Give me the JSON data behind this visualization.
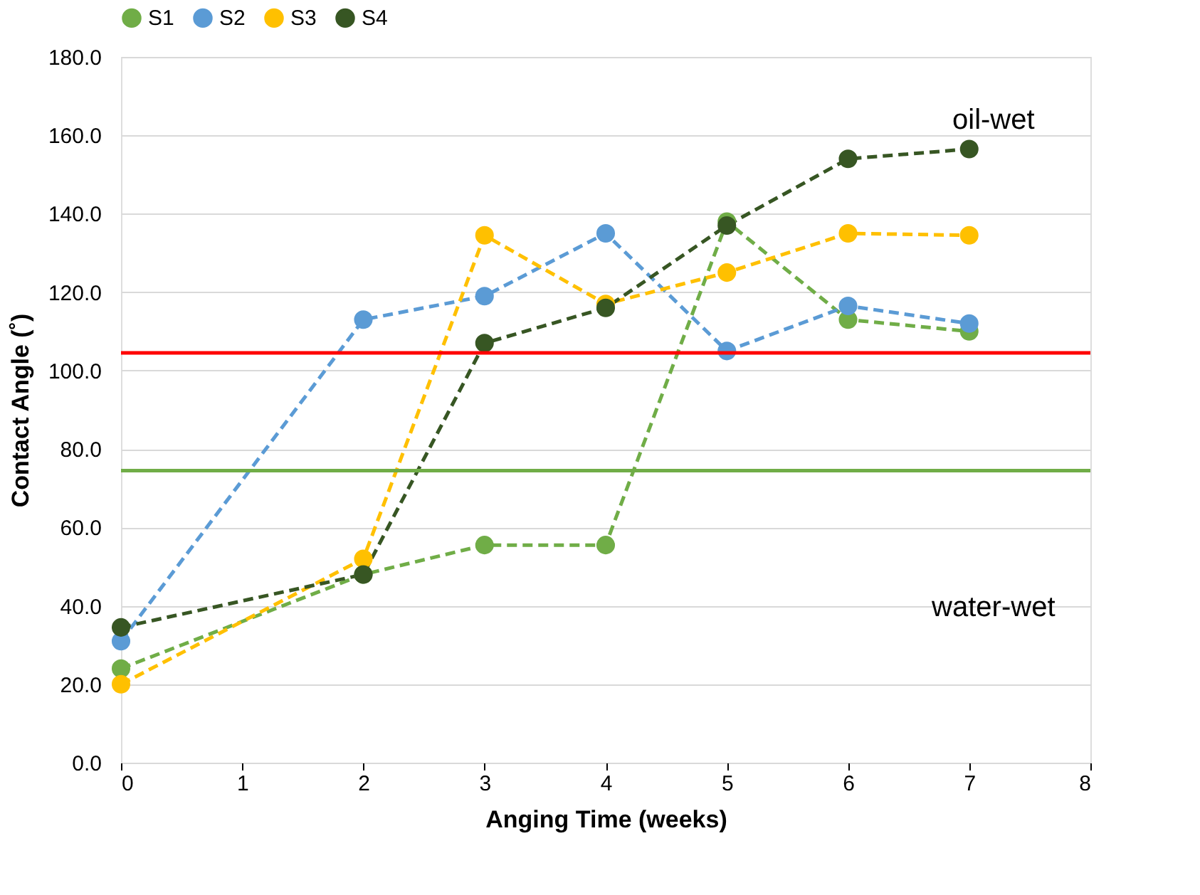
{
  "chart_data": {
    "type": "line",
    "xlabel": "Anging Time (weeks)",
    "ylabel": "Contact Angle (˚)",
    "x": [
      0,
      2,
      3,
      4,
      5,
      6,
      7
    ],
    "series": [
      {
        "name": "S1",
        "color": "#70ad47",
        "values": [
          24,
          48,
          55.5,
          55.5,
          138,
          113,
          110
        ]
      },
      {
        "name": "S2",
        "color": "#5b9bd5",
        "values": [
          31,
          113,
          119,
          135,
          105,
          116.5,
          112
        ]
      },
      {
        "name": "S3",
        "color": "#ffc000",
        "values": [
          20,
          52,
          134.5,
          117,
          125,
          135,
          134.5
        ]
      },
      {
        "name": "S4",
        "color": "#375623",
        "values": [
          34.5,
          48,
          107,
          116,
          137,
          154,
          156.5
        ]
      }
    ],
    "xlim": [
      0,
      8
    ],
    "xticks": [
      0,
      1,
      2,
      3,
      4,
      5,
      6,
      7,
      8
    ],
    "ylim": [
      0,
      180
    ],
    "yticks": [
      {
        "value": 0,
        "label": "0.0"
      },
      {
        "value": 20,
        "label": "20.0"
      },
      {
        "value": 40,
        "label": "40.0"
      },
      {
        "value": 60,
        "label": "60.0"
      },
      {
        "value": 80,
        "label": "80.0"
      },
      {
        "value": 100,
        "label": "100.0"
      },
      {
        "value": 120,
        "label": "120.0"
      },
      {
        "value": 140,
        "label": "140.0"
      },
      {
        "value": 160,
        "label": "160.0"
      },
      {
        "value": 180,
        "label": "180.0"
      }
    ],
    "ref_lines": [
      {
        "axis": "y",
        "value": 104.5,
        "color": "#ff0000"
      },
      {
        "axis": "y",
        "value": 74.5,
        "color": "#70ad47"
      }
    ],
    "annotations": [
      "oil-wet",
      "water-wet"
    ],
    "grid": "y",
    "legend": "top",
    "marker": "circle",
    "line_style": "dashed"
  }
}
